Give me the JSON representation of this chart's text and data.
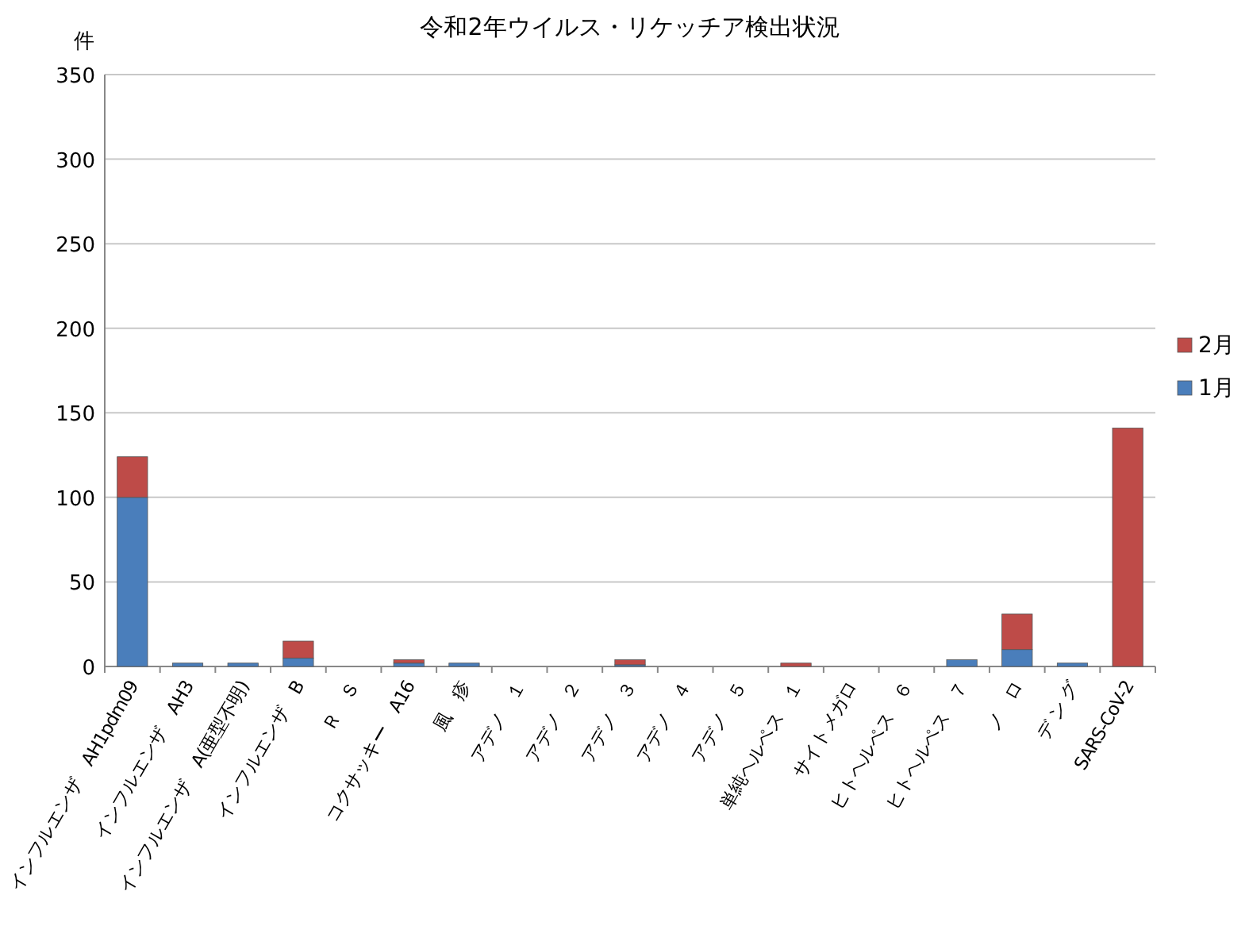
{
  "chart_data": {
    "type": "bar",
    "stacked": true,
    "title": "令和2年ウイルス・リケッチア検出状況",
    "ylabel": "件",
    "categories": [
      "インフルエンザ　AH1pdm09",
      "インフルエンザ　AH3",
      "インフルエンザ　A(亜型不明)",
      "インフルエンザ　B",
      "Ｒ　Ｓ",
      "コクサッキー　A16",
      "風　疹",
      "アデノ　１",
      "アデノ　２",
      "アデノ　３",
      "アデノ　４",
      "アデノ　５",
      "単純ヘルペス　１",
      "サイトメガロ",
      "ヒトヘルペス　６",
      "ヒトヘルペス　７",
      "ノ　ロ",
      "デ ン グ",
      "SARS-CoV-2"
    ],
    "series": [
      {
        "name": "1月",
        "color": "#4a7ebb",
        "values": [
          100,
          2,
          2,
          5,
          0,
          2,
          2,
          0,
          0,
          1,
          0,
          0,
          0,
          0,
          0,
          4,
          10,
          2,
          0
        ]
      },
      {
        "name": "2月",
        "color": "#be4b48",
        "values": [
          24,
          0,
          0,
          10,
          0,
          2,
          0,
          0,
          0,
          3,
          0,
          0,
          2,
          0,
          0,
          0,
          21,
          0,
          141
        ]
      }
    ],
    "ylim": [
      0,
      350
    ],
    "yticks": [
      0,
      50,
      100,
      150,
      200,
      250,
      300,
      350
    ],
    "grid": "y",
    "legend": "right"
  }
}
